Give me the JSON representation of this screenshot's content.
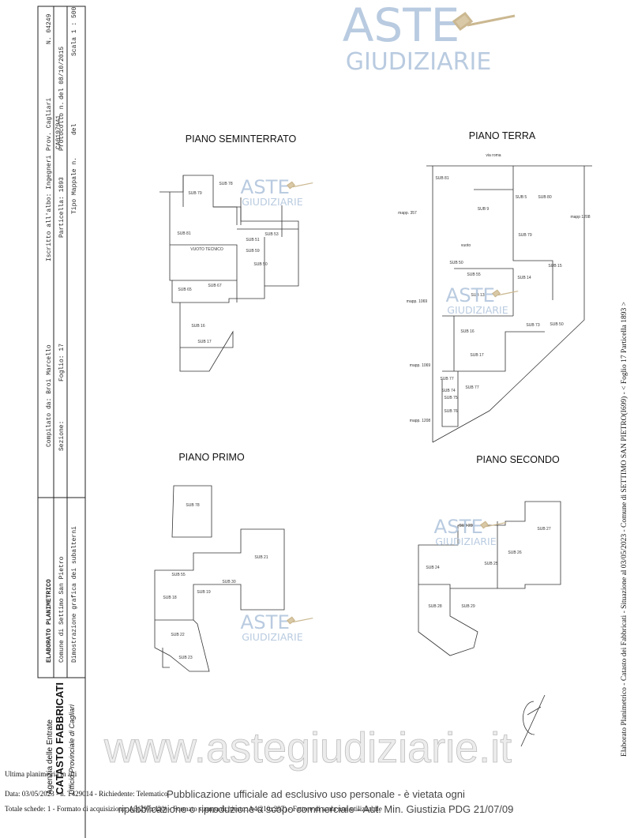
{
  "header": {
    "title": "ELABORATO PLANIMETRICO",
    "compiled": "Compilato da: Broi Marcello",
    "registered": "Iscritto all'albo: Ingegneri",
    "province": "Prov. Cagliari",
    "number": "N. 04249",
    "municipality": "Comune di Settimo San Pietro",
    "section": "Sezione:",
    "sheet": "Foglio: 17",
    "parcel": "Particella: 1893",
    "protocol": "Protocollo n.",
    "protocol_number": "CA0197941",
    "protocol_date": "del 08/10/2015",
    "description": "Dimostrazione grafica dei subalterni",
    "mappale": "Tipo Mappale n.",
    "mappale_date": "del",
    "scale": "Scala 1 : 500"
  },
  "agency": {
    "line1": "Agenzia delle Entrate",
    "line2": "CATASTO FABBRICATI",
    "line3": "Ufficio Provinciale di Cagliari"
  },
  "watermark": {
    "brand_top": "ASTE",
    "brand_bottom": "GIUDIZIARIE",
    "site": "www.astegiudiziarie.it",
    "notice1": "Pubblicazione ufficiale ad esclusivo uso personale - è vietata ogni",
    "notice2": "ripubblicazione o riproduzione a scopo commerciale - Aut. Min. Giustizia PDG 21/07/09"
  },
  "plans": [
    {
      "title": "PIANO SEMINTERRATO",
      "labels": [
        "SUB 79",
        "SUB 78",
        "SUB 81",
        "SUB 51",
        "SUB 53",
        "VUOTO TECNICO",
        "SUB 59",
        "SUB 50",
        "SUB 65",
        "SUB 67",
        "SUB 16",
        "SUB 17"
      ]
    },
    {
      "title": "PIANO TERRA",
      "labels": [
        "via roma",
        "SUB 81",
        "SUB 9",
        "SUB 5",
        "SUB 80",
        "mapp. 357",
        "mapp 1208",
        "vuoto",
        "SUB 79",
        "SUB 50",
        "SUB 55",
        "SUB 14",
        "SUB 15",
        "SUB 13",
        "mapp. 1069",
        "SUB 73",
        "SUB 50",
        "SUB 16",
        "SUB 17",
        "mapp. 1069",
        "SUB 77",
        "SUB 77",
        "SUB 74",
        "SUB 75",
        "SUB 76",
        "mapp. 1208"
      ]
    },
    {
      "title": "PIANO PRIMO",
      "labels": [
        "SUB 78",
        "SUB 21",
        "SUB 55",
        "SUB 30",
        "SUB 18",
        "SUB 19",
        "SUB 22",
        "SUB 23"
      ]
    },
    {
      "title": "PIANO SECONDO",
      "labels": [
        "SUB 27",
        "SUB 23",
        "SUB 26",
        "SUB 24",
        "SUB 25",
        "SUB 28",
        "SUB 29"
      ]
    }
  ],
  "footer": {
    "line1": "Ultima planimetria in atti",
    "line2": "Data: 03/05/2023 - n. T429014 - Richiedente: Telematico",
    "line3": "Totale schede: 1 - Formato di acquisizione: A3(297x420) - Formato stampa richiesto: A4(210x297) - Fattore di scala non utilizzabile"
  },
  "side_text": "Elaborato Planimetrico - Catasto dei Fabbricati - Situazione al 03/05/2023 - Comune di SETTIMO SAN PIETRO(I699) - < Foglio 17 Particella 1893 >"
}
